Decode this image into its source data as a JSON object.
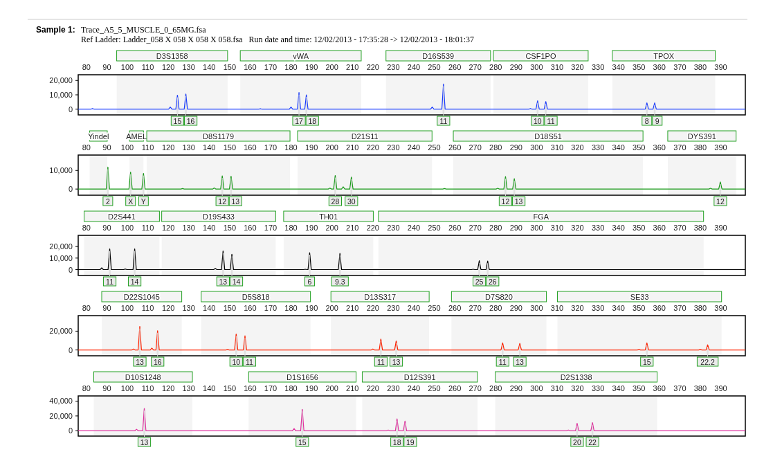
{
  "chart_data": [
    {
      "type": "line",
      "title": "Sample 1:",
      "subtitle": "Trace_A5_5_MUSCLE_0_65MG.fsa",
      "annotations": [
        "Ref Ladder: Ladder_058 X 058 X 058 X 058.fsa   Run date and time: 12/02/2013 - 17:35:28 -> 12/02/2013 - 18:01:37",
        {
          "text": "15",
          "x": 124.5,
          "y": 9700
        },
        {
          "text": "16",
          "x": 128.6,
          "y": 10600
        },
        {
          "text": "17",
          "x": 183.9,
          "y": 11600
        },
        {
          "text": "18",
          "x": 187.5,
          "y": 10000
        },
        {
          "text": "11",
          "x": 254.5,
          "y": 17500
        },
        {
          "text": "10",
          "x": 300.5,
          "y": 5900
        },
        {
          "text": "11",
          "x": 304.5,
          "y": 5300
        },
        {
          "text": "8",
          "x": 353.9,
          "y": 4400
        },
        {
          "text": "9",
          "x": 357.7,
          "y": 4400
        }
      ],
      "x": [
        76,
        82.2,
        83,
        83.8,
        120.2,
        121,
        121.8,
        123.7,
        124.5,
        125.3,
        127.8,
        128.6,
        129.4,
        164.2,
        165,
        165.8,
        179.2,
        180,
        180.8,
        183.1,
        183.9,
        184.7,
        186.7,
        187.5,
        188.3,
        248.2,
        249,
        249.8,
        253.7,
        254.5,
        255.3,
        296.2,
        297,
        297.8,
        299.7,
        300.5,
        301.3,
        303.7,
        304.5,
        305.3,
        353.1,
        353.9,
        354.7,
        356.9,
        357.7,
        358.5,
        402
      ],
      "series": [
        {
          "color": "#1a3cff",
          "values": [
            0,
            0,
            400,
            0,
            0,
            1500,
            0,
            0,
            9700,
            0,
            0,
            10600,
            0,
            0,
            300,
            0,
            0,
            1500,
            0,
            0,
            11600,
            0,
            0,
            10000,
            0,
            0,
            1500,
            0,
            0,
            17500,
            0,
            0,
            500,
            0,
            0,
            5900,
            0,
            0,
            5300,
            0,
            0,
            4400,
            0,
            0,
            4400,
            0,
            0
          ]
        }
      ],
      "xlim": [
        76,
        402
      ],
      "xticks": [
        80,
        90,
        100,
        110,
        120,
        130,
        140,
        150,
        160,
        170,
        180,
        190,
        200,
        210,
        220,
        230,
        240,
        250,
        260,
        270,
        280,
        290,
        300,
        310,
        320,
        330,
        340,
        350,
        360,
        370,
        380,
        390
      ],
      "ylim": [
        -4000,
        24000
      ],
      "yticks": [
        {
          "value": 0,
          "label": "0"
        },
        {
          "value": 10000,
          "label": "10,000"
        },
        {
          "value": 20000,
          "label": "20,000"
        }
      ],
      "bands": [
        {
          "axis": "x",
          "from": 94.8,
          "to": 149,
          "label": "D3S1358",
          "color": "#f4f4f4"
        },
        {
          "axis": "x",
          "from": 155.2,
          "to": 214.3,
          "label": "vWA",
          "color": "#f4f4f4"
        },
        {
          "axis": "x",
          "from": 226.4,
          "to": 277.5,
          "label": "D16S539",
          "color": "#f4f4f4"
        },
        {
          "axis": "x",
          "from": 278.9,
          "to": 325.2,
          "label": "CSF1PO",
          "color": "#f4f4f4"
        },
        {
          "axis": "x",
          "from": 337,
          "to": 387.3,
          "label": "TPOX",
          "color": "#f4f4f4"
        }
      ]
    },
    {
      "type": "line",
      "annotations": [
        {
          "text": "2",
          "x": 90.5,
          "y": 11800
        },
        {
          "text": "X",
          "x": 101.6,
          "y": 9100
        },
        {
          "text": "Y",
          "x": 107.9,
          "y": 8400
        },
        {
          "text": "12",
          "x": 146.4,
          "y": 7100
        },
        {
          "text": "13",
          "x": 150.7,
          "y": 6900
        },
        {
          "text": "28",
          "x": 201.6,
          "y": 7300
        },
        {
          "text": "30",
          "x": 209.5,
          "y": 6400
        },
        {
          "text": "12",
          "x": 284.8,
          "y": 6700
        },
        {
          "text": "13",
          "x": 289.1,
          "y": 5600
        },
        {
          "text": "12",
          "x": 389.8,
          "y": 3800
        }
      ],
      "x": [
        76,
        89.7,
        90.5,
        91.3,
        100.8,
        101.6,
        102.4,
        107.1,
        107.9,
        108.7,
        126.2,
        127,
        127.8,
        141.7,
        142.5,
        143.3,
        145.6,
        146.4,
        147.2,
        149.9,
        150.7,
        151.5,
        198.2,
        199,
        199.8,
        200.8,
        201.6,
        202.4,
        204.7,
        205.5,
        206.3,
        208.7,
        209.5,
        210.3,
        254.2,
        255,
        255.8,
        280.2,
        281,
        281.8,
        284,
        284.8,
        285.6,
        288.3,
        289.1,
        289.9,
        384.2,
        385,
        385.8,
        389,
        389.8,
        390.6,
        402
      ],
      "series": [
        {
          "color": "#1a9a1a",
          "values": [
            0,
            0,
            11800,
            0,
            0,
            9100,
            0,
            0,
            8400,
            0,
            0,
            300,
            0,
            0,
            600,
            0,
            0,
            7100,
            0,
            0,
            6900,
            0,
            0,
            500,
            0,
            0,
            7300,
            0,
            0,
            1200,
            0,
            0,
            6400,
            0,
            0,
            300,
            0,
            0,
            400,
            0,
            0,
            6700,
            0,
            0,
            5600,
            0,
            0,
            400,
            0,
            0,
            3800,
            0,
            0
          ]
        }
      ],
      "xlim": [
        76,
        402
      ],
      "xticks": [
        80,
        90,
        100,
        110,
        120,
        130,
        140,
        150,
        160,
        170,
        180,
        190,
        200,
        210,
        220,
        230,
        240,
        250,
        260,
        270,
        280,
        290,
        300,
        310,
        320,
        330,
        340,
        350,
        360,
        370,
        380,
        390
      ],
      "ylim": [
        -3300,
        18300
      ],
      "yticks": [
        {
          "value": 0,
          "label": "0"
        },
        {
          "value": 10000,
          "label": "10,000"
        }
      ],
      "bands": [
        {
          "axis": "x",
          "from": 81.6,
          "to": 90.2,
          "label": "Yindel",
          "color": "#f4f4f4"
        },
        {
          "axis": "x",
          "from": 101.1,
          "to": 107.9,
          "label": "AMEL",
          "color": "#f4f4f4"
        },
        {
          "axis": "x",
          "from": 109.5,
          "to": 179.5,
          "label": "D8S1179",
          "color": "#f4f4f4"
        },
        {
          "axis": "x",
          "from": 183.2,
          "to": 248.9,
          "label": "D21S11",
          "color": "#f4f4f4"
        },
        {
          "axis": "x",
          "from": 259.3,
          "to": 352,
          "label": "D18S51",
          "color": "#f4f4f4"
        },
        {
          "axis": "x",
          "from": 364.1,
          "to": 397.5,
          "label": "DYS391",
          "color": "#f4f4f4"
        }
      ]
    },
    {
      "type": "line",
      "annotations": [
        {
          "text": "11",
          "x": 91.4,
          "y": 17900
        },
        {
          "text": "14",
          "x": 103.6,
          "y": 17900
        },
        {
          "text": "13",
          "x": 146.8,
          "y": 16100
        },
        {
          "text": "14",
          "x": 151.1,
          "y": 13300
        },
        {
          "text": "6",
          "x": 189.1,
          "y": 14700
        },
        {
          "text": "9.3",
          "x": 203.9,
          "y": 14000
        },
        {
          "text": "25",
          "x": 272,
          "y": 7700
        },
        {
          "text": "26",
          "x": 276.1,
          "y": 7400
        }
      ],
      "x": [
        76,
        86.7,
        87.5,
        88.3,
        90.6,
        91.4,
        92.2,
        98.2,
        99,
        99.8,
        102.8,
        103.6,
        104.4,
        142.2,
        143,
        143.8,
        146,
        146.8,
        147.6,
        150.3,
        151.1,
        151.9,
        186.2,
        187,
        187.8,
        188.3,
        189.1,
        189.9,
        203.1,
        203.9,
        204.7,
        268.2,
        269,
        269.8,
        271.2,
        272,
        272.8,
        275.3,
        276.1,
        276.9,
        402
      ],
      "series": [
        {
          "color": "#000000",
          "values": [
            0,
            0,
            1500,
            0,
            0,
            17900,
            0,
            0,
            500,
            0,
            0,
            17900,
            0,
            0,
            1000,
            0,
            0,
            16100,
            0,
            0,
            13300,
            0,
            0,
            300,
            0,
            0,
            14700,
            0,
            0,
            14000,
            0,
            0,
            300,
            0,
            0,
            7700,
            0,
            0,
            7400,
            0,
            0
          ]
        }
      ],
      "xlim": [
        76,
        402
      ],
      "xticks": [
        80,
        90,
        100,
        110,
        120,
        130,
        140,
        150,
        160,
        170,
        180,
        190,
        200,
        210,
        220,
        230,
        240,
        250,
        260,
        270,
        280,
        290,
        300,
        310,
        320,
        330,
        340,
        350,
        360,
        370,
        380,
        390
      ],
      "ylim": [
        -5100,
        29700
      ],
      "yticks": [
        {
          "value": 0,
          "label": "0"
        },
        {
          "value": 10000,
          "label": "10,000"
        },
        {
          "value": 20000,
          "label": "20,000"
        }
      ],
      "bands": [
        {
          "axis": "x",
          "from": 78.9,
          "to": 115.7,
          "label": "D2S441",
          "color": "#f4f4f4"
        },
        {
          "axis": "x",
          "from": 116.8,
          "to": 172.5,
          "label": "D19S433",
          "color": "#f4f4f4"
        },
        {
          "axis": "x",
          "from": 176.4,
          "to": 220.2,
          "label": "TH01",
          "color": "#f4f4f4"
        },
        {
          "axis": "x",
          "from": 222.7,
          "to": 381.6,
          "label": "FGA",
          "color": "#f4f4f4"
        }
      ]
    },
    {
      "type": "line",
      "annotations": [
        {
          "text": "13",
          "x": 106.1,
          "y": 25000
        },
        {
          "text": "16",
          "x": 114.8,
          "y": 20500
        },
        {
          "text": "10",
          "x": 153.2,
          "y": 17000
        },
        {
          "text": "11",
          "x": 157.5,
          "y": 15000
        },
        {
          "text": "11",
          "x": 223.9,
          "y": 11500
        },
        {
          "text": "13",
          "x": 231.4,
          "y": 9500
        },
        {
          "text": "11",
          "x": 283.4,
          "y": 7500
        },
        {
          "text": "13",
          "x": 291.8,
          "y": 7000
        },
        {
          "text": "15",
          "x": 353.9,
          "y": 7500
        },
        {
          "text": "22.2",
          "x": 383.6,
          "y": 5500
        }
      ],
      "x": [
        76,
        102.2,
        103,
        103.8,
        105.3,
        106.1,
        106.9,
        111.2,
        112,
        112.8,
        114,
        114.8,
        115.6,
        148.2,
        149,
        149.8,
        152.4,
        153.2,
        154,
        156.7,
        157.5,
        158.3,
        219.2,
        220,
        220.8,
        223.1,
        223.9,
        224.7,
        230.6,
        231.4,
        232.2,
        282.6,
        283.4,
        284.2,
        291,
        291.8,
        292.6,
        349.2,
        350,
        350.8,
        353.1,
        353.9,
        354.7,
        379.2,
        380,
        380.8,
        382.8,
        383.6,
        384.4,
        402
      ],
      "series": [
        {
          "color": "#ff2200",
          "values": [
            0,
            0,
            1000,
            0,
            0,
            25000,
            0,
            0,
            2000,
            0,
            0,
            20500,
            0,
            0,
            500,
            0,
            0,
            17000,
            0,
            0,
            15000,
            0,
            0,
            1000,
            0,
            0,
            11500,
            0,
            0,
            9500,
            0,
            0,
            7500,
            0,
            0,
            7000,
            0,
            0,
            500,
            0,
            0,
            7500,
            0,
            0,
            500,
            0,
            0,
            5500,
            0,
            0
          ]
        }
      ],
      "xlim": [
        76,
        402
      ],
      "xticks": [
        80,
        90,
        100,
        110,
        120,
        130,
        140,
        150,
        160,
        170,
        180,
        190,
        200,
        210,
        220,
        230,
        240,
        250,
        260,
        270,
        280,
        290,
        300,
        310,
        320,
        330,
        340,
        350,
        360,
        370,
        380,
        390
      ],
      "ylim": [
        -6200,
        36500
      ],
      "yticks": [
        {
          "value": 0,
          "label": "0"
        },
        {
          "value": 20000,
          "label": "20,000"
        }
      ],
      "bands": [
        {
          "axis": "x",
          "from": 87.5,
          "to": 126.6,
          "label": "D22S1045",
          "color": "#f4f4f4"
        },
        {
          "axis": "x",
          "from": 136.1,
          "to": 189.5,
          "label": "D5S818",
          "color": "#f4f4f4"
        },
        {
          "axis": "x",
          "from": 199.5,
          "to": 247.5,
          "label": "D13S317",
          "color": "#f4f4f4"
        },
        {
          "axis": "x",
          "from": 258.4,
          "to": 304.8,
          "label": "D7S820",
          "color": "#f4f4f4"
        },
        {
          "axis": "x",
          "from": 310.2,
          "to": 390.4,
          "label": "SE33",
          "color": "#f4f4f4"
        }
      ]
    },
    {
      "type": "line",
      "annotations": [
        {
          "text": "13",
          "x": 108.3,
          "y": 30000
        },
        {
          "text": "15",
          "x": 185.5,
          "y": 29000
        },
        {
          "text": "18",
          "x": 231.8,
          "y": 16000
        },
        {
          "text": "19",
          "x": 235.7,
          "y": 13000
        },
        {
          "text": "20",
          "x": 319.8,
          "y": 10000
        },
        {
          "text": "22",
          "x": 327.3,
          "y": 11000
        }
      ],
      "x": [
        76,
        103.7,
        104.5,
        105.3,
        107.5,
        108.3,
        109.1,
        180.7,
        181.5,
        182.3,
        184.7,
        185.5,
        186.3,
        226.7,
        227.5,
        228.3,
        231,
        231.8,
        232.6,
        234.9,
        235.7,
        236.5,
        314.7,
        315.5,
        316.3,
        319,
        319.8,
        320.6,
        326.5,
        327.3,
        328.1,
        402
      ],
      "series": [
        {
          "color": "#e0309f",
          "values": [
            0,
            0,
            2000,
            0,
            0,
            30000,
            0,
            0,
            3000,
            0,
            0,
            29000,
            0,
            0,
            1000,
            0,
            0,
            16000,
            0,
            0,
            13000,
            0,
            0,
            1000,
            0,
            0,
            10000,
            0,
            0,
            11000,
            0,
            0
          ]
        }
      ],
      "xlim": [
        76,
        402
      ],
      "xticks": [
        80,
        90,
        100,
        110,
        120,
        130,
        140,
        150,
        160,
        170,
        180,
        190,
        200,
        210,
        220,
        230,
        240,
        250,
        260,
        270,
        280,
        290,
        300,
        310,
        320,
        330,
        340,
        350,
        360,
        370,
        380,
        390
      ],
      "ylim": [
        -7200,
        47000
      ],
      "yticks": [
        {
          "value": 0,
          "label": "0"
        },
        {
          "value": 20000,
          "label": "20,000"
        },
        {
          "value": 40000,
          "label": "40,000"
        }
      ],
      "bands": [
        {
          "axis": "x",
          "from": 83.6,
          "to": 131.8,
          "label": "D10S1248",
          "color": "#f4f4f4"
        },
        {
          "axis": "x",
          "from": 159.3,
          "to": 211.8,
          "label": "D1S1656",
          "color": "#f4f4f4"
        },
        {
          "axis": "x",
          "from": 214.8,
          "to": 271.1,
          "label": "D12S391",
          "color": "#f4f4f4"
        },
        {
          "axis": "x",
          "from": 279.8,
          "to": 358.9,
          "label": "D2S1338",
          "color": "#f4f4f4"
        }
      ]
    }
  ]
}
